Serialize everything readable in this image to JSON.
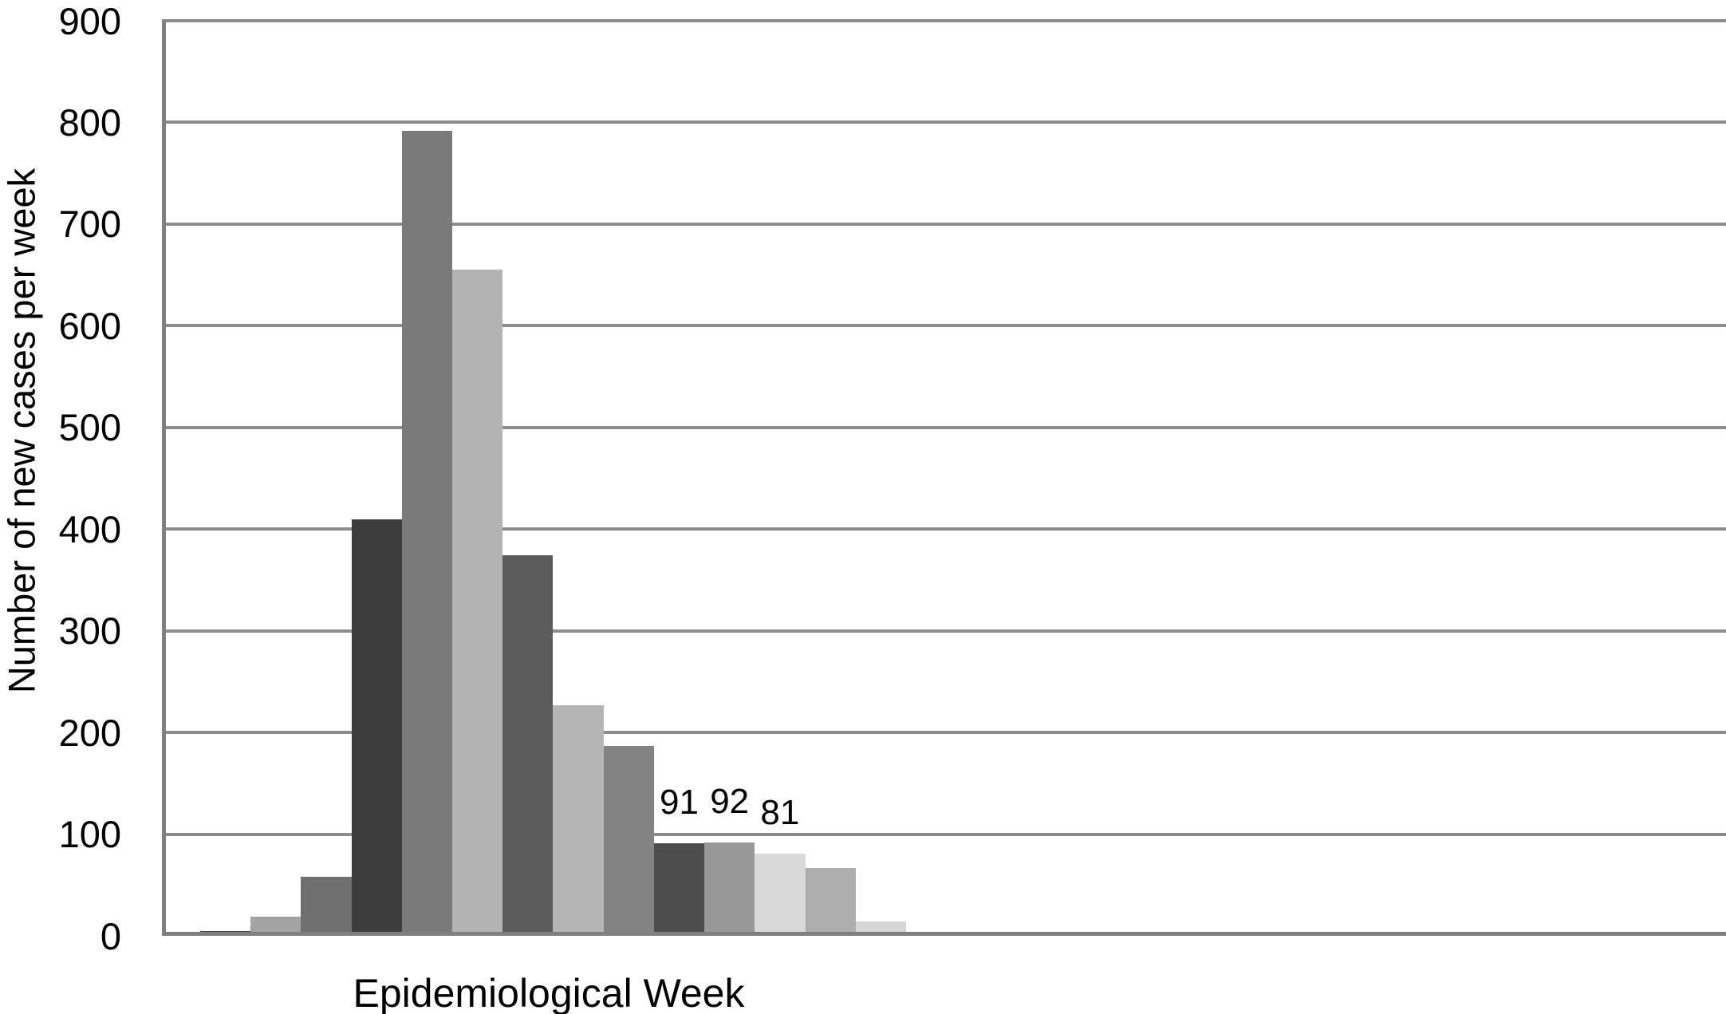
{
  "chart_data": {
    "type": "bar",
    "title": "",
    "xlabel": "Epidemiological Week",
    "ylabel": "Number of new cases per week",
    "ylim": [
      0,
      900
    ],
    "ytick_step": 100,
    "ytick_labels": [
      "0",
      "100",
      "200",
      "300",
      "400",
      "500",
      "600",
      "700",
      "800",
      "900"
    ],
    "xtick_labels": [],
    "grid": "horizontal",
    "legend": "none",
    "bars": [
      {
        "value": 5,
        "data_label": "",
        "color": "#3f3f3f"
      },
      {
        "value": 19,
        "data_label": "",
        "color": "#a3a3a3"
      },
      {
        "value": 58,
        "data_label": "",
        "color": "#6f6f6f"
      },
      {
        "value": 410,
        "data_label": "",
        "color": "#3d3d3d"
      },
      {
        "value": 792,
        "data_label": "",
        "color": "#7a7a7a"
      },
      {
        "value": 655,
        "data_label": "",
        "color": "#b3b3b3"
      },
      {
        "value": 374,
        "data_label": "",
        "color": "#5c5c5c"
      },
      {
        "value": 227,
        "data_label": "",
        "color": "#b5b5b5"
      },
      {
        "value": 187,
        "data_label": "",
        "color": "#838383"
      },
      {
        "value": 91,
        "data_label": "91",
        "color": "#4d4d4d"
      },
      {
        "value": 92,
        "data_label": "92",
        "color": "#989898"
      },
      {
        "value": 81,
        "data_label": "81",
        "color": "#d9d9d9"
      },
      {
        "value": 67,
        "data_label": "",
        "color": "#aeaeae"
      },
      {
        "value": 14,
        "data_label": "",
        "color": "#d6d6d6"
      }
    ]
  },
  "colors": {
    "background": "#ffffff",
    "gridline": "#8c8c8c",
    "axis": "#7f7f7f",
    "text": "#000000"
  }
}
